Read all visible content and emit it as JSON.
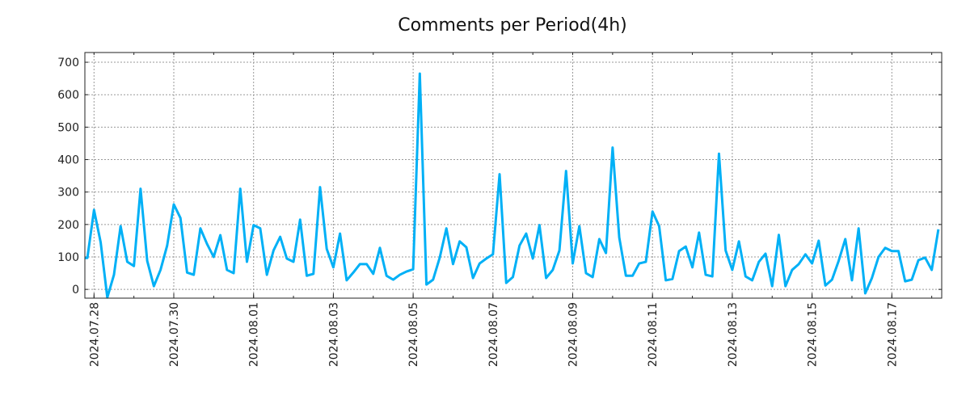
{
  "chart_data": {
    "type": "line",
    "title": "Comments per Period(4h)",
    "xlabel": "",
    "ylabel": "",
    "x_start": "2024-07-27 20:00",
    "x_step_hours": 4,
    "x_ticks": [
      "2024.07.28",
      "2024.07.30",
      "2024.08.01",
      "2024.08.03",
      "2024.08.05",
      "2024.08.07",
      "2024.08.09",
      "2024.08.11",
      "2024.08.13",
      "2024.08.15",
      "2024.08.17"
    ],
    "y_ticks": [
      0,
      100,
      200,
      300,
      400,
      500,
      600,
      700
    ],
    "ylim": [
      -27,
      730
    ],
    "xlim_hours_from_0728": [
      -5.5,
      510
    ],
    "grid": true,
    "series": [
      {
        "name": "comments",
        "color": "#00b0f6",
        "values": [
          97,
          245,
          145,
          -25,
          45,
          195,
          85,
          72,
          310,
          88,
          10,
          60,
          135,
          262,
          220,
          52,
          45,
          188,
          140,
          100,
          167,
          60,
          50,
          310,
          85,
          198,
          188,
          45,
          120,
          162,
          95,
          85,
          215,
          42,
          48,
          315,
          125,
          68,
          172,
          28,
          52,
          78,
          78,
          48,
          128,
          42,
          30,
          45,
          55,
          62,
          665,
          15,
          30,
          98,
          188,
          78,
          148,
          130,
          35,
          80,
          95,
          108,
          355,
          20,
          38,
          135,
          172,
          95,
          198,
          35,
          60,
          120,
          365,
          80,
          195,
          50,
          38,
          155,
          112,
          437,
          160,
          42,
          42,
          80,
          85,
          240,
          195,
          28,
          32,
          118,
          132,
          68,
          175,
          45,
          40,
          418,
          120,
          60,
          148,
          40,
          28,
          85,
          110,
          10,
          168,
          10,
          60,
          78,
          108,
          80,
          150,
          12,
          30,
          88,
          155,
          28,
          188,
          -12,
          35,
          100,
          128,
          118,
          118,
          25,
          30,
          90,
          98,
          60,
          185
        ]
      }
    ]
  }
}
